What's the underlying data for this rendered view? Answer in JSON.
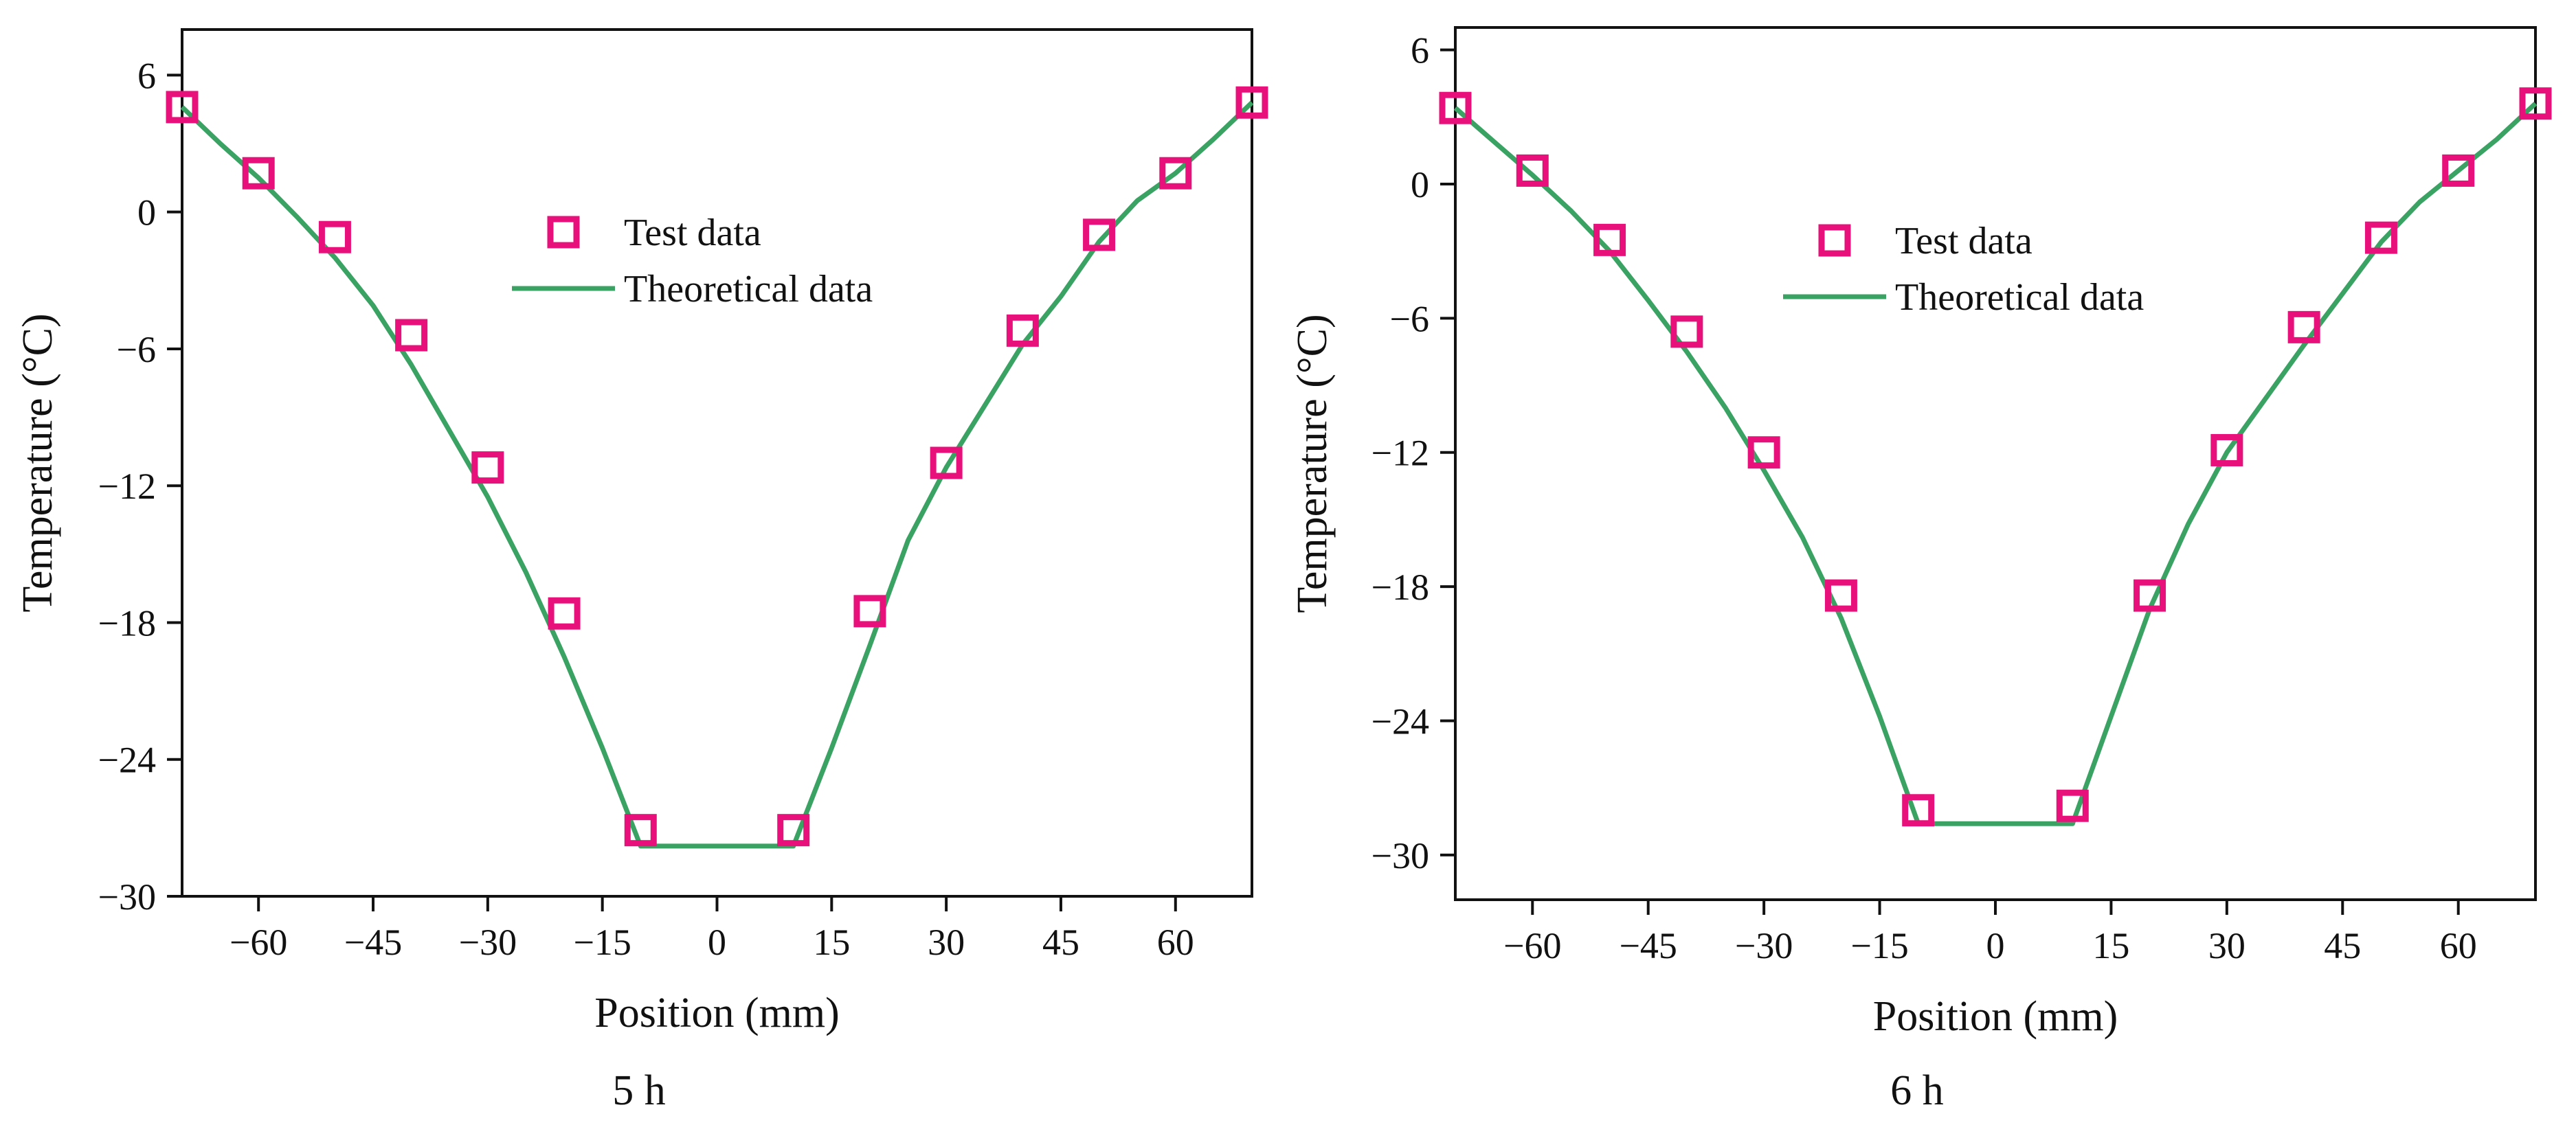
{
  "figure": {
    "captions": [
      "5 h",
      "6 h"
    ]
  },
  "colors": {
    "test_marker": "#e8107a",
    "theory_line": "#3aa363",
    "axis": "#111111"
  },
  "chart_data": [
    {
      "type": "line",
      "title": "5 h",
      "xlabel": "Position (mm)",
      "ylabel": "Temperature (°C)",
      "xlim": [
        -70,
        70
      ],
      "ylim": [
        -30,
        8
      ],
      "xticks": [
        -60,
        -45,
        -30,
        -15,
        0,
        15,
        30,
        45,
        60
      ],
      "xtick_labels": [
        "−60",
        "−45",
        "−30",
        "−15",
        "0",
        "15",
        "30",
        "45",
        "60"
      ],
      "yticks": [
        -30,
        -24,
        -18,
        -12,
        -6,
        0,
        6
      ],
      "ytick_labels": [
        "−30",
        "−24",
        "−18",
        "−12",
        "−6",
        "0",
        "6"
      ],
      "legend": {
        "position": "top-center",
        "entries": [
          "Test data",
          "Theoretical data"
        ]
      },
      "series": [
        {
          "name": "Test data",
          "kind": "scatter",
          "x": [
            -70,
            -60,
            -50,
            -40,
            -30,
            -20,
            -10,
            10,
            20,
            30,
            40,
            50,
            60,
            70
          ],
          "y": [
            4.6,
            1.7,
            -1.1,
            -5.4,
            -11.2,
            -17.6,
            -27.1,
            -27.1,
            -17.5,
            -11.0,
            -5.2,
            -1.0,
            1.7,
            4.8
          ]
        },
        {
          "name": "Theoretical data",
          "kind": "line",
          "x": [
            -70,
            -65,
            -60,
            -55,
            -50,
            -45,
            -40,
            -35,
            -30,
            -25,
            -20,
            -15,
            -10,
            0,
            10,
            15,
            20,
            25,
            30,
            35,
            40,
            45,
            50,
            55,
            60,
            65,
            70
          ],
          "y": [
            4.6,
            3.0,
            1.5,
            -0.2,
            -2.0,
            -4.1,
            -6.7,
            -9.6,
            -12.5,
            -15.8,
            -19.5,
            -23.5,
            -27.8,
            -27.8,
            -27.8,
            -23.5,
            -19.0,
            -14.4,
            -11.2,
            -8.5,
            -5.8,
            -3.7,
            -1.3,
            0.5,
            1.7,
            3.2,
            4.8
          ]
        }
      ]
    },
    {
      "type": "line",
      "title": "6 h",
      "xlabel": "Position (mm)",
      "ylabel": "Temperature (°C)",
      "xlim": [
        -70,
        70
      ],
      "ylim": [
        -32,
        7
      ],
      "xticks": [
        -60,
        -45,
        -30,
        -15,
        0,
        15,
        30,
        45,
        60
      ],
      "xtick_labels": [
        "−60",
        "−45",
        "−30",
        "−15",
        "0",
        "15",
        "30",
        "45",
        "60"
      ],
      "yticks": [
        -30,
        -24,
        -18,
        -12,
        -6,
        0,
        6
      ],
      "ytick_labels": [
        "−30",
        "−24",
        "−18",
        "−12",
        "−6",
        "0",
        "6"
      ],
      "legend": {
        "position": "top-center",
        "entries": [
          "Test data",
          "Theoretical data"
        ]
      },
      "series": [
        {
          "name": "Test data",
          "kind": "scatter",
          "x": [
            -70,
            -60,
            -50,
            -40,
            -30,
            -20,
            -10,
            10,
            20,
            30,
            40,
            50,
            60,
            70
          ],
          "y": [
            3.4,
            0.6,
            -2.5,
            -6.6,
            -12.0,
            -18.4,
            -28.0,
            -27.8,
            -18.4,
            -11.9,
            -6.4,
            -2.4,
            0.6,
            3.6
          ]
        },
        {
          "name": "Theoretical data",
          "kind": "line",
          "x": [
            -70,
            -65,
            -60,
            -55,
            -50,
            -45,
            -40,
            -35,
            -30,
            -25,
            -20,
            -15,
            -10,
            0,
            10,
            15,
            20,
            25,
            30,
            35,
            40,
            45,
            50,
            55,
            60,
            65,
            70
          ],
          "y": [
            3.4,
            1.9,
            0.4,
            -1.2,
            -3.0,
            -5.2,
            -7.5,
            -10.0,
            -12.8,
            -15.8,
            -19.4,
            -23.8,
            -28.6,
            -28.6,
            -28.6,
            -23.8,
            -19.0,
            -15.2,
            -12.0,
            -9.6,
            -7.2,
            -4.9,
            -2.6,
            -0.8,
            0.6,
            2.0,
            3.6
          ]
        }
      ]
    }
  ]
}
